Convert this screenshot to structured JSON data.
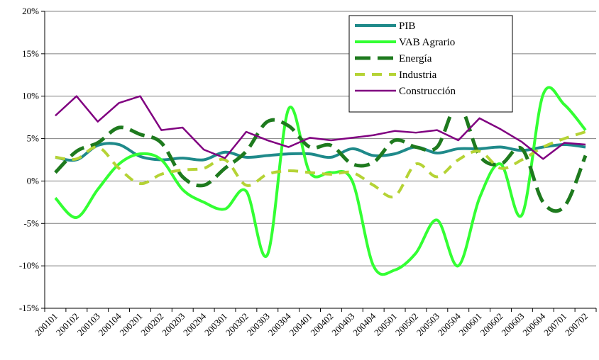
{
  "chart_data": {
    "type": "line",
    "categories": [
      "200101",
      "200102",
      "200103",
      "200104",
      "200201",
      "200202",
      "200203",
      "200204",
      "200301",
      "200302",
      "200303",
      "200304",
      "200401",
      "200402",
      "200403",
      "200404",
      "200501",
      "200502",
      "200503",
      "200504",
      "200601",
      "200602",
      "200603",
      "200604",
      "200701",
      "200702"
    ],
    "series": [
      {
        "name": "PIB",
        "color": "#1f8a8a",
        "width": 4,
        "dash": "none",
        "smooth": true,
        "values": [
          2.8,
          2.5,
          4.2,
          4.3,
          2.9,
          2.5,
          2.7,
          2.5,
          3.4,
          2.8,
          3.0,
          3.2,
          3.2,
          2.8,
          3.8,
          3.0,
          3.2,
          4.0,
          3.3,
          3.8,
          3.8,
          4.0,
          3.6,
          4.0,
          4.3,
          4.0
        ]
      },
      {
        "name": "VAB Agrario",
        "color": "#33ff33",
        "width": 4,
        "dash": "none",
        "smooth": true,
        "values": [
          -2.0,
          -4.3,
          -1.0,
          2.0,
          3.2,
          2.5,
          -1.0,
          -2.5,
          -3.3,
          -1.2,
          -8.7,
          8.5,
          1.0,
          1.0,
          0.0,
          -10.0,
          -10.5,
          -8.5,
          -4.6,
          -10.0,
          -2.0,
          2.0,
          -4.0,
          10.2,
          9.0,
          6.0
        ]
      },
      {
        "name": "Energía",
        "color": "#1e7a1e",
        "width": 5,
        "dash": "22 10",
        "smooth": true,
        "values": [
          1.0,
          3.5,
          4.5,
          6.3,
          5.5,
          4.5,
          0.5,
          -0.5,
          1.5,
          3.5,
          7.0,
          6.5,
          4.0,
          4.2,
          2.0,
          2.2,
          4.8,
          4.0,
          4.0,
          9.0,
          3.0,
          2.0,
          3.8,
          -2.5,
          -3.0,
          3.0
        ]
      },
      {
        "name": "Industria",
        "color": "#b5d335",
        "width": 4,
        "dash": "14 10",
        "smooth": true,
        "values": [
          2.8,
          2.6,
          4.0,
          1.5,
          -0.3,
          0.8,
          1.3,
          1.5,
          2.5,
          -0.5,
          0.8,
          1.2,
          1.0,
          0.8,
          1.0,
          -0.5,
          -1.8,
          2.0,
          0.5,
          2.5,
          3.5,
          1.5,
          2.5,
          4.0,
          5.0,
          5.8
        ]
      },
      {
        "name": "Construcción",
        "color": "#800080",
        "width": 2.5,
        "dash": "none",
        "smooth": false,
        "values": [
          7.7,
          10.0,
          7.0,
          9.2,
          10.0,
          6.0,
          6.3,
          3.7,
          2.7,
          5.8,
          4.8,
          4.0,
          5.1,
          4.8,
          5.1,
          5.4,
          5.9,
          5.7,
          6.0,
          4.8,
          7.4,
          6.1,
          4.6,
          2.6,
          4.5,
          4.3
        ]
      }
    ],
    "ylim": [
      -15,
      20
    ],
    "yticks": [
      {
        "value": -15,
        "label": "-15%"
      },
      {
        "value": -10,
        "label": "-10%"
      },
      {
        "value": -5,
        "label": "-5%"
      },
      {
        "value": 0,
        "label": "0%"
      },
      {
        "value": 5,
        "label": "5%"
      },
      {
        "value": 10,
        "label": "10%"
      },
      {
        "value": 15,
        "label": "15%"
      },
      {
        "value": 20,
        "label": "20%"
      }
    ],
    "grid": true,
    "legend": "top-right"
  }
}
